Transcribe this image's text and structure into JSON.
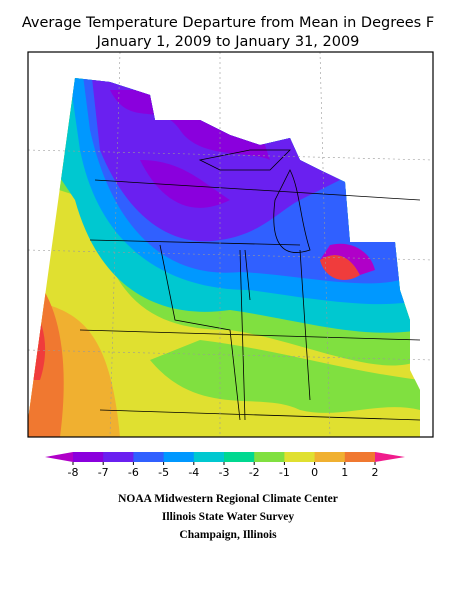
{
  "header": {
    "title": "Average Temperature Departure from Mean in Degrees F",
    "subtitle": "January 1, 2009 to January 31, 2009"
  },
  "legend": {
    "ticks": [
      -8,
      -7,
      -6,
      -5,
      -4,
      -3,
      -2,
      -1,
      0,
      1,
      2
    ],
    "colors": [
      "#b000c8",
      "#8a00dd",
      "#6a20f0",
      "#3060ff",
      "#0098ff",
      "#00c8d0",
      "#00d890",
      "#80e040",
      "#e0e030",
      "#f0b030",
      "#f07830",
      "#f03c3c",
      "#f01c8c"
    ]
  },
  "footer": {
    "lines": [
      "NOAA Midwestern Regional Climate Center",
      "Illinois State Water Survey",
      "Champaign, Illinois"
    ]
  }
}
